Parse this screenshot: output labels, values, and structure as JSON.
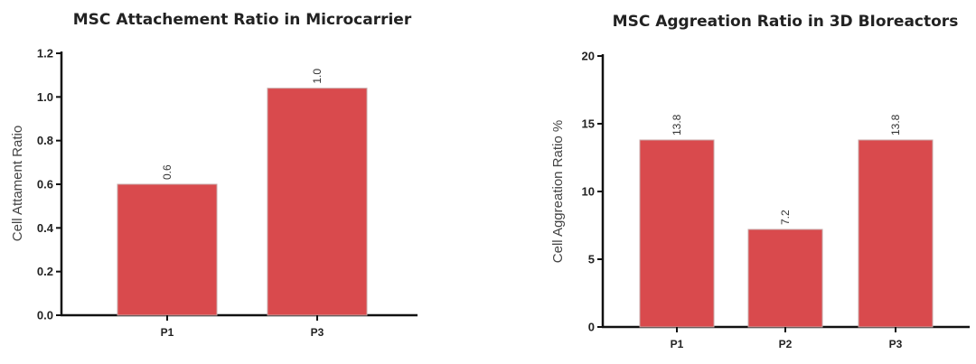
{
  "chart_data": [
    {
      "type": "bar",
      "title": "MSC Attachement Ratio in Microcarrier",
      "xlabel": "",
      "ylabel": "Cell Attament Ratio",
      "categories": [
        "P1",
        "P3"
      ],
      "values": [
        0.6,
        1.04
      ],
      "data_labels": [
        "0.6",
        "1.0"
      ],
      "ylim": [
        0,
        1.2
      ],
      "yticks": [
        "0.0",
        "0.2",
        "0.4",
        "0.6",
        "0.8",
        "1.0",
        "1.2"
      ],
      "bar_color": "#d94a4d",
      "grid": false,
      "legend": "none"
    },
    {
      "type": "bar",
      "title": "MSC Aggreation Ratio in 3D BIoreactors",
      "xlabel": "",
      "ylabel": "Cell Aggreation Ratio %",
      "categories": [
        "P1",
        "P2",
        "P3"
      ],
      "values": [
        13.8,
        7.2,
        13.8
      ],
      "data_labels": [
        "13.8",
        "7.2",
        "13.8"
      ],
      "ylim": [
        0,
        20
      ],
      "yticks": [
        "0",
        "5",
        "10",
        "15",
        "20"
      ],
      "bar_color": "#d94a4d",
      "grid": false,
      "legend": "none"
    }
  ]
}
